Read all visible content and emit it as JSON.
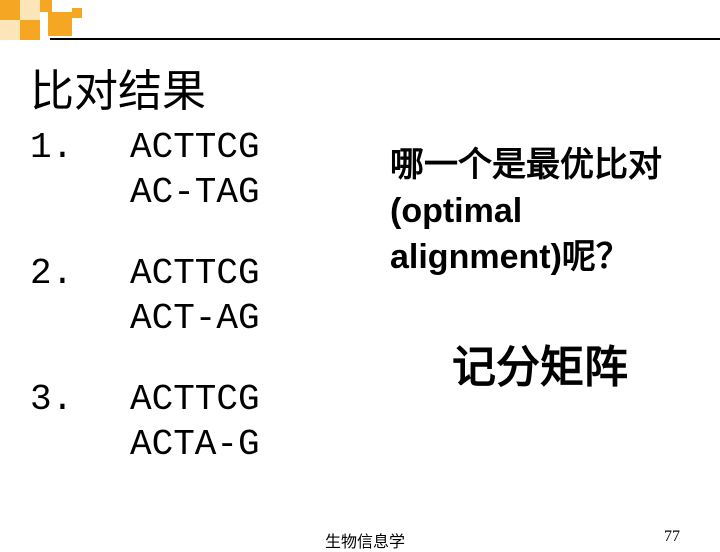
{
  "title": "比对结果",
  "alignments": [
    {
      "num": "1.",
      "seq1": "ACTTCG",
      "seq2": "AC-TAG"
    },
    {
      "num": "2.",
      "seq1": "ACTTCG",
      "seq2": "ACT-AG"
    },
    {
      "num": "3.",
      "seq1": "ACTTCG",
      "seq2": "ACTA-G"
    }
  ],
  "question_line1": "哪一个是最优比对",
  "question_line2": "(optimal",
  "question_line3": "alignment)呢？",
  "matrix_label": "记分矩阵",
  "footer_text": "生物信息学",
  "page_num": "77",
  "colors": {
    "accent": "#f5a623",
    "accent_light": "#fce5b8",
    "text": "#000000",
    "bg": "#ffffff"
  }
}
